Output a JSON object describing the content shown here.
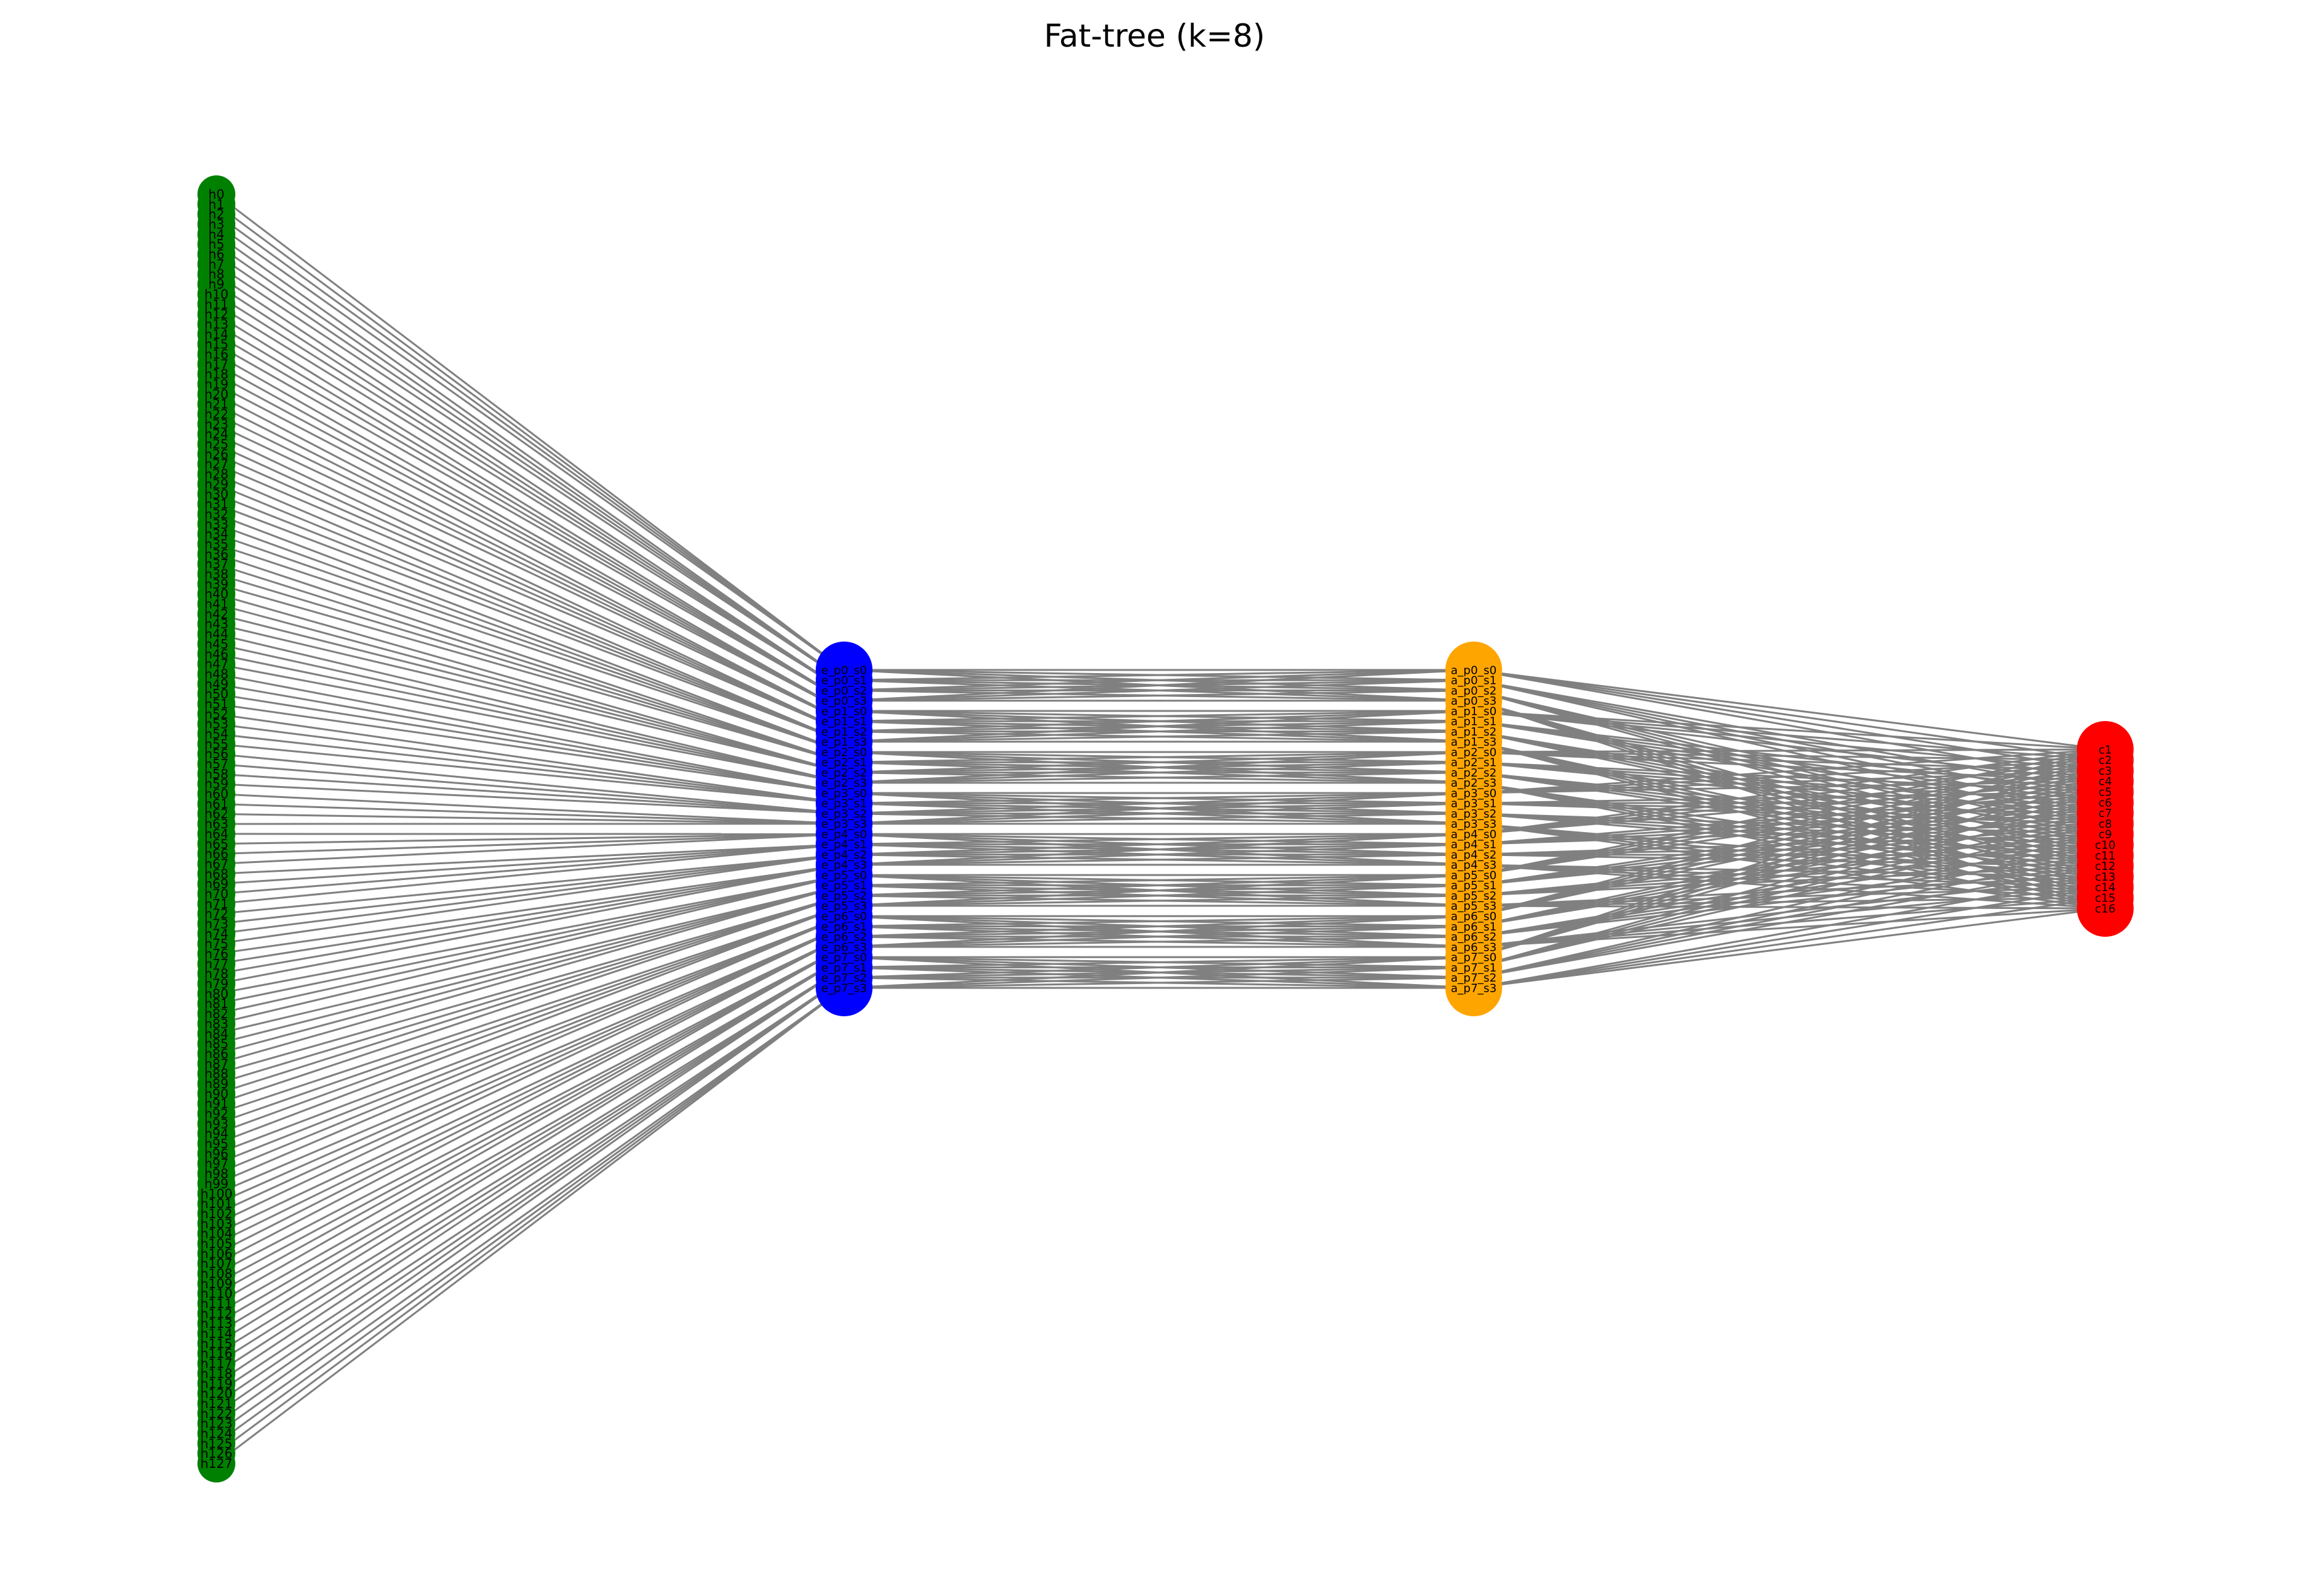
{
  "title": "Fat-tree (k=8)",
  "colors": {
    "host": "#008000",
    "edge": "#0000ff",
    "aggregation": "#ffa500",
    "core": "#ff0000",
    "link": "#808080"
  },
  "layers": {
    "hosts": {
      "prefix": "h",
      "start": 0,
      "count": 128
    },
    "edge_switches": {
      "pods": 8,
      "per_pod": 4,
      "pattern": "e_p{p}_s{s}"
    },
    "aggregation_switches": {
      "pods": 8,
      "per_pod": 4,
      "pattern": "a_p{p}_s{s}"
    },
    "core_switches": {
      "prefix": "c",
      "start": 1,
      "count": 16
    }
  }
}
